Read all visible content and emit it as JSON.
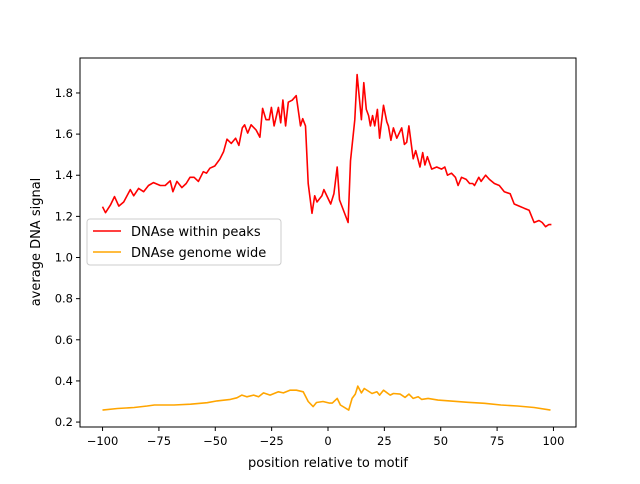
{
  "chart_data": {
    "type": "line",
    "title": "",
    "xlabel": "position relative to motif",
    "ylabel": "average DNA signal",
    "xlim": [
      -110,
      110
    ],
    "ylim": [
      0.176,
      1.97
    ],
    "xticks": [
      -100,
      -75,
      -50,
      -25,
      0,
      25,
      50,
      75,
      100
    ],
    "yticks": [
      0.2,
      0.4,
      0.6,
      0.8,
      1.0,
      1.2,
      1.4,
      1.6,
      1.8
    ],
    "grid": false,
    "legend_placement": "center-left",
    "series": [
      {
        "name": "DNAse within peaks",
        "color": "#ff0000",
        "points": [
          [
            -100,
            1.247
          ],
          [
            -98.7,
            1.218
          ],
          [
            -96.5,
            1.255
          ],
          [
            -94.7,
            1.296
          ],
          [
            -92.8,
            1.25
          ],
          [
            -90.6,
            1.27
          ],
          [
            -87.7,
            1.33
          ],
          [
            -86.2,
            1.3
          ],
          [
            -84,
            1.336
          ],
          [
            -81.8,
            1.32
          ],
          [
            -79.6,
            1.35
          ],
          [
            -77.4,
            1.364
          ],
          [
            -74.4,
            1.35
          ],
          [
            -72.2,
            1.35
          ],
          [
            -70,
            1.373
          ],
          [
            -68.8,
            1.32
          ],
          [
            -67,
            1.37
          ],
          [
            -64.8,
            1.34
          ],
          [
            -62.9,
            1.36
          ],
          [
            -61.2,
            1.39
          ],
          [
            -59.4,
            1.39
          ],
          [
            -57.5,
            1.37
          ],
          [
            -55.3,
            1.417
          ],
          [
            -53.9,
            1.41
          ],
          [
            -52.4,
            1.434
          ],
          [
            -50.2,
            1.445
          ],
          [
            -48,
            1.478
          ],
          [
            -46.3,
            1.515
          ],
          [
            -44.8,
            1.575
          ],
          [
            -42.9,
            1.555
          ],
          [
            -41,
            1.58
          ],
          [
            -39.5,
            1.545
          ],
          [
            -38,
            1.63
          ],
          [
            -37,
            1.645
          ],
          [
            -35.6,
            1.605
          ],
          [
            -34.1,
            1.645
          ],
          [
            -31.9,
            1.62
          ],
          [
            -30.2,
            1.585
          ],
          [
            -29,
            1.725
          ],
          [
            -27.5,
            1.67
          ],
          [
            -26.1,
            1.67
          ],
          [
            -25.1,
            1.73
          ],
          [
            -23.9,
            1.64
          ],
          [
            -22,
            1.73
          ],
          [
            -21,
            1.655
          ],
          [
            -20,
            1.766
          ],
          [
            -18.8,
            1.64
          ],
          [
            -17.6,
            1.755
          ],
          [
            -15.9,
            1.765
          ],
          [
            -14.1,
            1.787
          ],
          [
            -12.2,
            1.64
          ],
          [
            -11.2,
            1.675
          ],
          [
            -10,
            1.64
          ],
          [
            -8.8,
            1.36
          ],
          [
            -7.1,
            1.215
          ],
          [
            -5.9,
            1.3
          ],
          [
            -4.9,
            1.27
          ],
          [
            -2.7,
            1.3
          ],
          [
            -1.8,
            1.33
          ],
          [
            1.2,
            1.26
          ],
          [
            2.6,
            1.31
          ],
          [
            4.1,
            1.44
          ],
          [
            5.1,
            1.28
          ],
          [
            8.9,
            1.17
          ],
          [
            10,
            1.47
          ],
          [
            11.9,
            1.67
          ],
          [
            12.9,
            1.89
          ],
          [
            14.8,
            1.67
          ],
          [
            15.9,
            1.85
          ],
          [
            17,
            1.72
          ],
          [
            18,
            1.69
          ],
          [
            18.8,
            1.64
          ],
          [
            19.8,
            1.69
          ],
          [
            20.7,
            1.64
          ],
          [
            21.9,
            1.72
          ],
          [
            22.9,
            1.58
          ],
          [
            24.6,
            1.74
          ],
          [
            26.1,
            1.66
          ],
          [
            26.8,
            1.64
          ],
          [
            27.9,
            1.57
          ],
          [
            29,
            1.63
          ],
          [
            30.5,
            1.58
          ],
          [
            32.7,
            1.63
          ],
          [
            33.9,
            1.55
          ],
          [
            34.9,
            1.56
          ],
          [
            35.9,
            1.64
          ],
          [
            37.8,
            1.48
          ],
          [
            38.9,
            1.52
          ],
          [
            40.8,
            1.44
          ],
          [
            42,
            1.51
          ],
          [
            43,
            1.45
          ],
          [
            44.1,
            1.49
          ],
          [
            46,
            1.43
          ],
          [
            48.2,
            1.44
          ],
          [
            50.4,
            1.43
          ],
          [
            51.8,
            1.44
          ],
          [
            53,
            1.4
          ],
          [
            54.8,
            1.41
          ],
          [
            56.5,
            1.39
          ],
          [
            57.7,
            1.35
          ],
          [
            59.2,
            1.39
          ],
          [
            61.3,
            1.38
          ],
          [
            62.8,
            1.36
          ],
          [
            64.2,
            1.36
          ],
          [
            65,
            1.35
          ],
          [
            66.9,
            1.39
          ],
          [
            67.9,
            1.37
          ],
          [
            69.9,
            1.4
          ],
          [
            71.6,
            1.38
          ],
          [
            73.8,
            1.36
          ],
          [
            76,
            1.35
          ],
          [
            78.2,
            1.32
          ],
          [
            80.8,
            1.31
          ],
          [
            82.6,
            1.26
          ],
          [
            84.8,
            1.25
          ],
          [
            87,
            1.24
          ],
          [
            89.2,
            1.23
          ],
          [
            91.4,
            1.17
          ],
          [
            93.6,
            1.18
          ],
          [
            95,
            1.17
          ],
          [
            96.5,
            1.15
          ],
          [
            97.9,
            1.16
          ],
          [
            99.1,
            1.16
          ]
        ]
      },
      {
        "name": "DNAse genome wide",
        "color": "#ffa500",
        "points": [
          [
            -100,
            0.258
          ],
          [
            -93.4,
            0.266
          ],
          [
            -86,
            0.271
          ],
          [
            -80.2,
            0.278
          ],
          [
            -77,
            0.283
          ],
          [
            -68.3,
            0.283
          ],
          [
            -61,
            0.287
          ],
          [
            -53.6,
            0.294
          ],
          [
            -49.2,
            0.303
          ],
          [
            -43.3,
            0.31
          ],
          [
            -40.4,
            0.318
          ],
          [
            -38.2,
            0.331
          ],
          [
            -36,
            0.323
          ],
          [
            -33,
            0.331
          ],
          [
            -30.8,
            0.323
          ],
          [
            -28.6,
            0.342
          ],
          [
            -25.7,
            0.331
          ],
          [
            -22,
            0.347
          ],
          [
            -19.8,
            0.342
          ],
          [
            -16.9,
            0.355
          ],
          [
            -14,
            0.355
          ],
          [
            -11,
            0.347
          ],
          [
            -8.8,
            0.3
          ],
          [
            -6.6,
            0.275
          ],
          [
            -5.1,
            0.295
          ],
          [
            -2.2,
            0.3
          ],
          [
            0.7,
            0.292
          ],
          [
            1.9,
            0.292
          ],
          [
            4.1,
            0.315
          ],
          [
            5.5,
            0.283
          ],
          [
            9.2,
            0.258
          ],
          [
            10.7,
            0.315
          ],
          [
            12.1,
            0.336
          ],
          [
            13.2,
            0.375
          ],
          [
            14.8,
            0.342
          ],
          [
            16.1,
            0.363
          ],
          [
            19.5,
            0.339
          ],
          [
            21.7,
            0.347
          ],
          [
            22.9,
            0.331
          ],
          [
            24.6,
            0.355
          ],
          [
            27.6,
            0.331
          ],
          [
            29,
            0.339
          ],
          [
            32,
            0.336
          ],
          [
            34.2,
            0.32
          ],
          [
            35.9,
            0.336
          ],
          [
            37.8,
            0.315
          ],
          [
            40,
            0.323
          ],
          [
            41.5,
            0.31
          ],
          [
            44.4,
            0.315
          ],
          [
            48.8,
            0.307
          ],
          [
            54.7,
            0.302
          ],
          [
            62,
            0.296
          ],
          [
            69.4,
            0.291
          ],
          [
            76.7,
            0.283
          ],
          [
            84,
            0.278
          ],
          [
            91.4,
            0.271
          ],
          [
            98.7,
            0.258
          ]
        ]
      }
    ]
  }
}
